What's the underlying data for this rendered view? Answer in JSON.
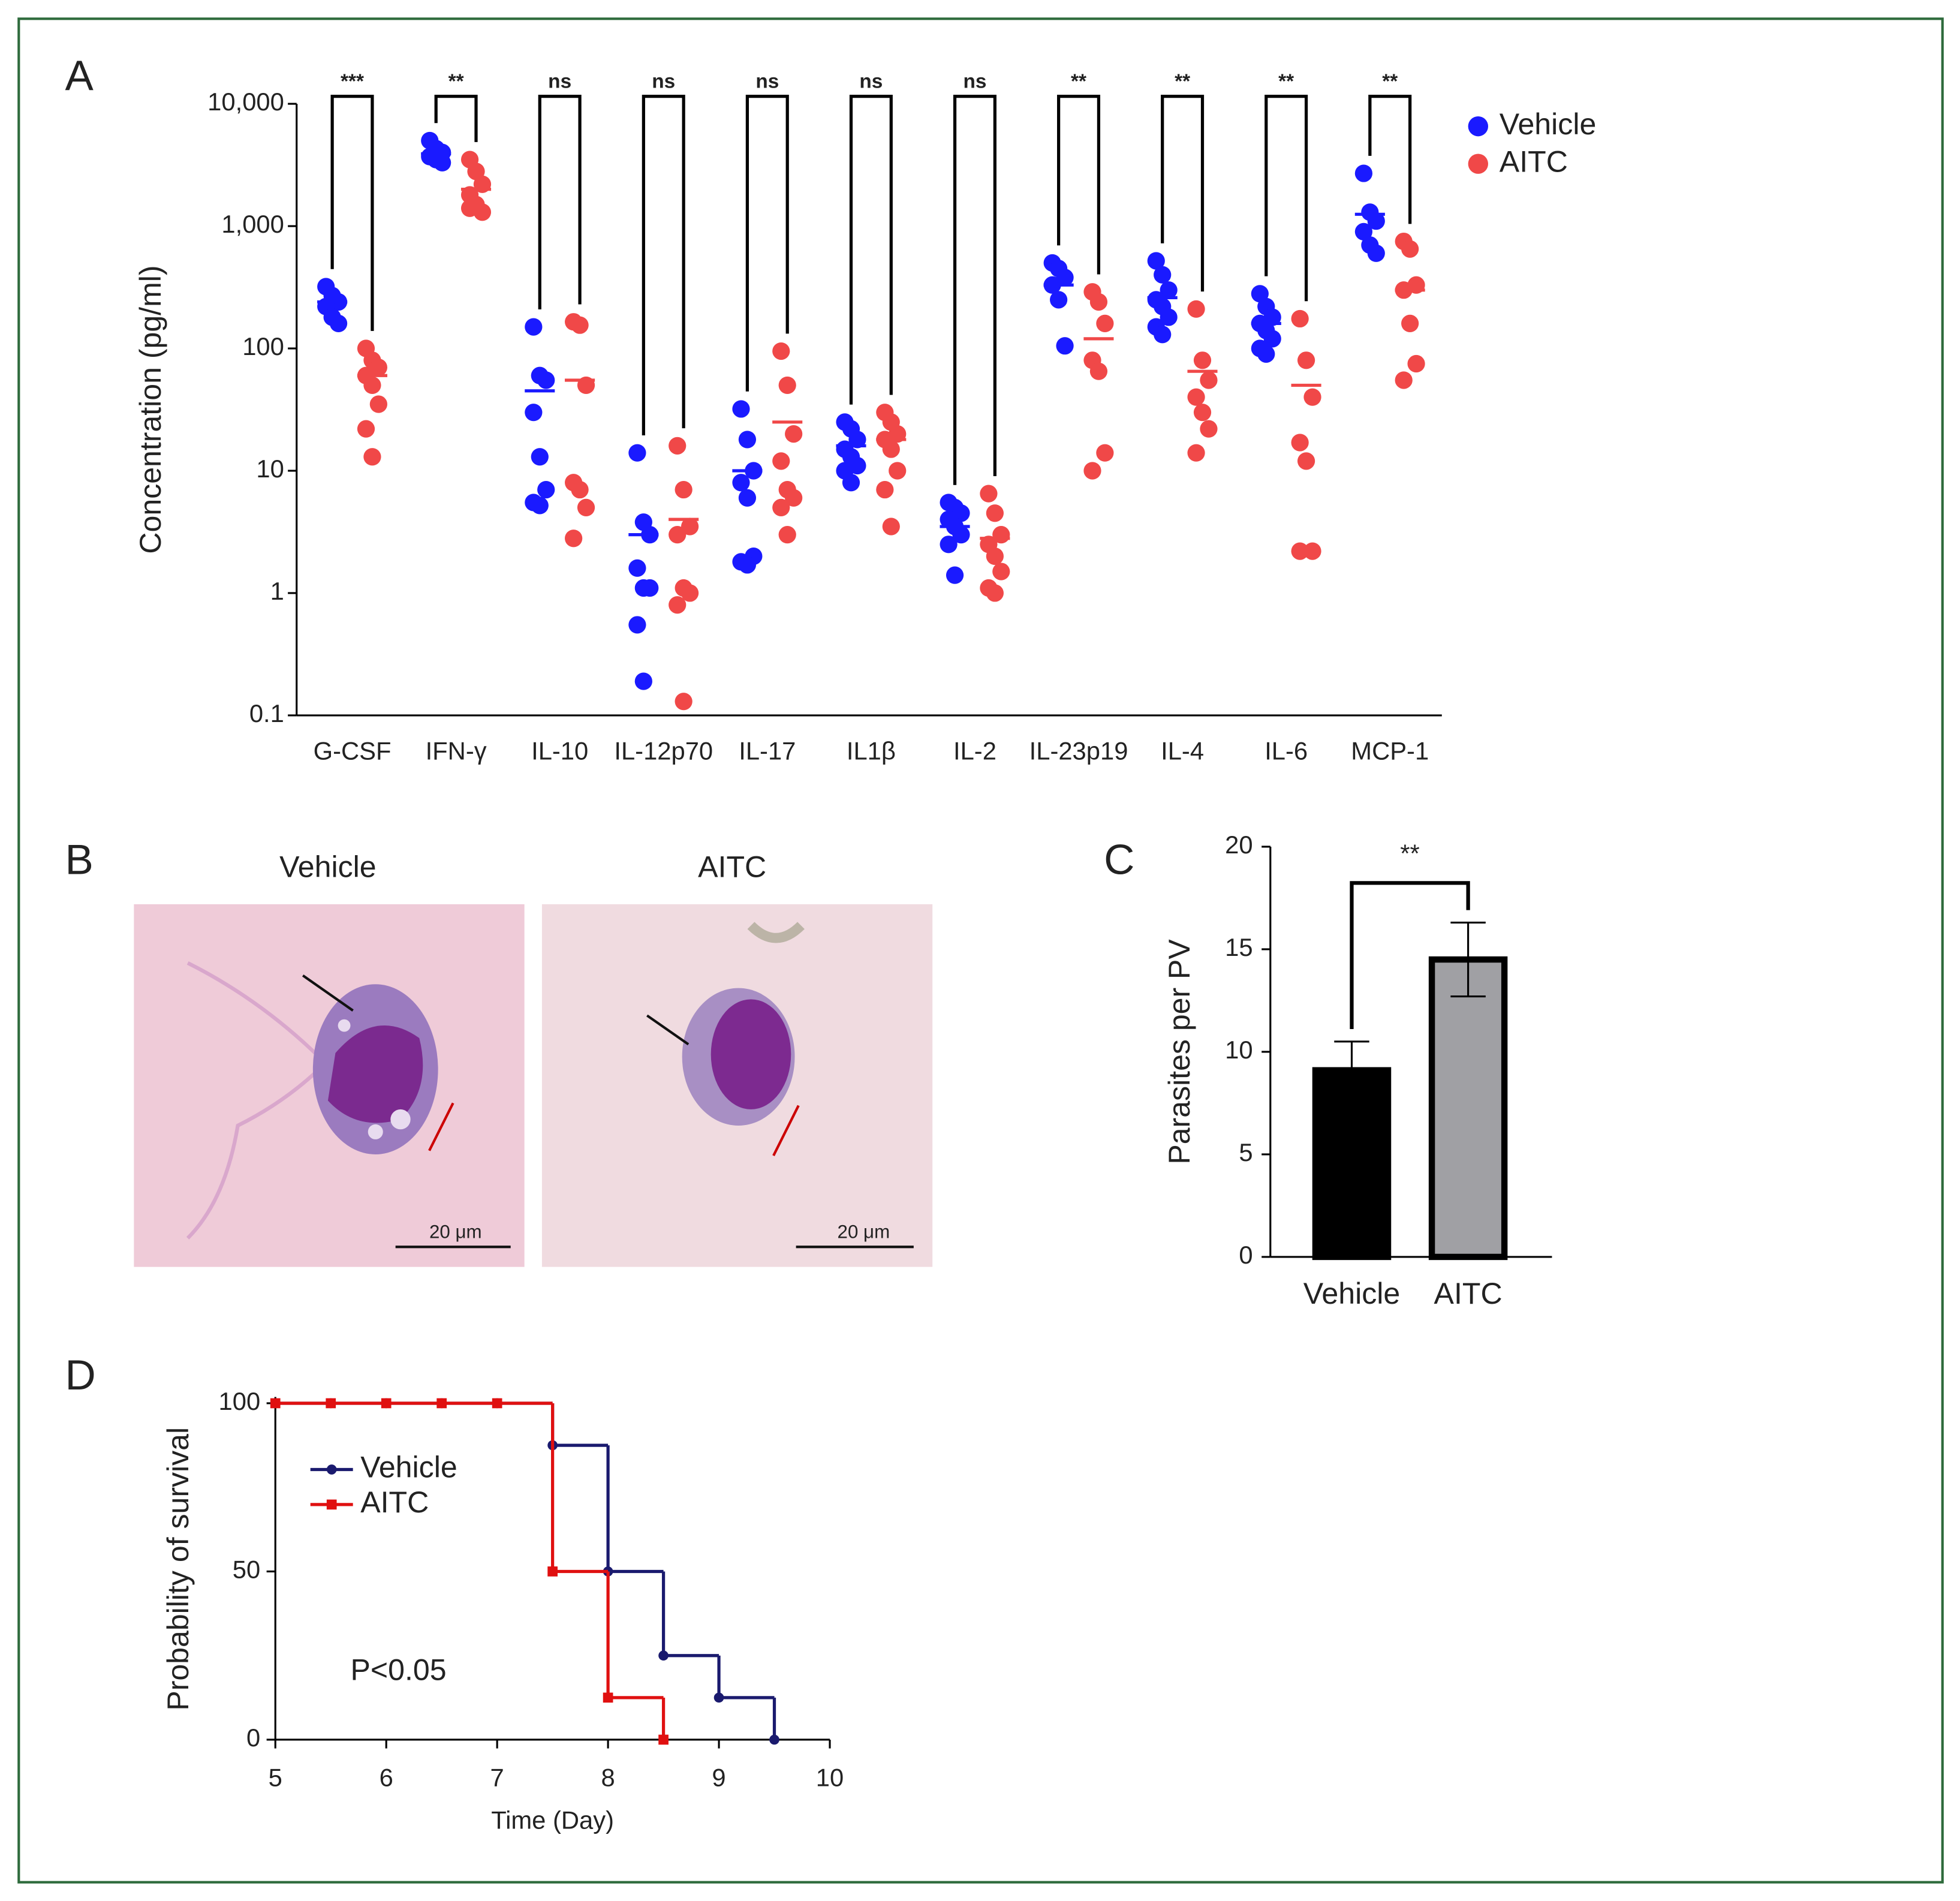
{
  "panel_labels": [
    "A",
    "B",
    "C",
    "D"
  ],
  "micrographs": [
    {
      "label": "Vehicle",
      "scale": "20 μm"
    },
    {
      "label": "AITC",
      "scale": "20 μm"
    }
  ],
  "chart_data": [
    {
      "type": "strip",
      "ylabel": "Concentration (pg/ml)",
      "log_y": true,
      "categories": [
        "G-CSF",
        "IFN-γ",
        "IL-10",
        "IL-12p70",
        "IL-17",
        "IL1β",
        "IL-2",
        "IL-23p19",
        "IL-4",
        "IL-6",
        "MCP-1"
      ],
      "ylim": [
        0.1,
        10000
      ],
      "yticks": [
        0.1,
        1,
        10,
        100,
        {
          "value": 1000,
          "label": "1,000"
        },
        {
          "value": 10000,
          "label": "10,000"
        }
      ],
      "significance": [
        "***",
        "**",
        "ns",
        "ns",
        "ns",
        "ns",
        "ns",
        "**",
        "**",
        "**",
        "**"
      ],
      "series": [
        {
          "name": "Vehicle",
          "color": "#1a1aff",
          "values": [
            [
              320,
              270,
              240,
              220,
              180,
              160
            ],
            [
              5000,
              4300,
              4000,
              3700,
              3500,
              3300
            ],
            [
              150,
              60,
              55,
              30,
              13,
              7,
              5.5,
              5.2
            ],
            [
              14,
              3.8,
              3,
              1.6,
              1.1,
              1.1,
              0.55,
              0.19
            ],
            [
              32,
              18,
              10,
              8,
              6,
              2,
              1.8,
              1.7
            ],
            [
              25,
              22,
              18,
              15,
              13,
              11,
              10,
              8
            ],
            [
              5.5,
              5,
              4.5,
              4,
              3.5,
              3,
              2.5,
              1.4
            ],
            [
              500,
              450,
              380,
              330,
              250,
              105
            ],
            [
              520,
              400,
              300,
              250,
              220,
              180,
              150,
              130
            ],
            [
              280,
              220,
              180,
              160,
              140,
              120,
              100,
              90
            ],
            [
              2700,
              1300,
              1100,
              900,
              700,
              600
            ]
          ],
          "means": [
            240,
            3900,
            45,
            3,
            10,
            16,
            3.5,
            330,
            260,
            160,
            1250
          ]
        },
        {
          "name": "AITC",
          "color": "#f04848",
          "values": [
            [
              100,
              80,
              70,
              60,
              50,
              35,
              22,
              13
            ],
            [
              3500,
              2800,
              2200,
              1800,
              1500,
              1300,
              1400
            ],
            [
              165,
              155,
              50,
              8,
              7,
              5,
              2.8
            ],
            [
              16,
              7,
              3.5,
              3,
              1.1,
              1,
              0.8,
              0.13
            ],
            [
              95,
              50,
              20,
              12,
              7,
              6,
              5,
              3
            ],
            [
              30,
              25,
              20,
              18,
              15,
              10,
              7,
              3.5
            ],
            [
              6.5,
              4.5,
              3,
              2.5,
              2,
              1.5,
              1.1,
              1
            ],
            [
              290,
              240,
              160,
              80,
              65,
              14,
              10
            ],
            [
              210,
              80,
              55,
              40,
              30,
              22,
              14
            ],
            [
              175,
              80,
              40,
              17,
              12,
              2.2,
              2.2
            ],
            [
              750,
              650,
              330,
              300,
              160,
              75,
              55
            ]
          ],
          "means": [
            60,
            2000,
            55,
            4,
            25,
            18,
            2.8,
            120,
            65,
            50,
            300
          ]
        }
      ]
    },
    {
      "type": "bar",
      "ylabel": "Parasites per PV",
      "categories": [
        "Vehicle",
        "AITC"
      ],
      "values": [
        9.1,
        14.5
      ],
      "errors": [
        1.4,
        1.8
      ],
      "colors": [
        "#000000",
        "#a0a0a4"
      ],
      "ylim": [
        0,
        20
      ],
      "yticks": [
        0,
        5,
        10,
        15,
        20
      ],
      "significance": "**"
    },
    {
      "type": "step",
      "xlabel": "Time (Day)",
      "ylabel": "Probability of survival",
      "xlim": [
        5,
        10
      ],
      "xticks": [
        5,
        6,
        7,
        8,
        9,
        10
      ],
      "ylim": [
        0,
        100
      ],
      "yticks": [
        0,
        50,
        100
      ],
      "annotation": "P<0.05",
      "series": [
        {
          "name": "Vehicle",
          "color": "#1a1a6e",
          "marker": "circle",
          "x": [
            5,
            5.5,
            6,
            6.5,
            7,
            7.5,
            8,
            8.5,
            9,
            9.5
          ],
          "values": [
            100,
            100,
            100,
            100,
            100,
            87.5,
            50,
            25,
            12.5,
            0
          ]
        },
        {
          "name": "AITC",
          "color": "#e01010",
          "marker": "square",
          "x": [
            5,
            5.5,
            6,
            6.5,
            7,
            7.5,
            8,
            8.5
          ],
          "values": [
            100,
            100,
            100,
            100,
            100,
            50,
            12.5,
            0
          ]
        }
      ]
    }
  ]
}
